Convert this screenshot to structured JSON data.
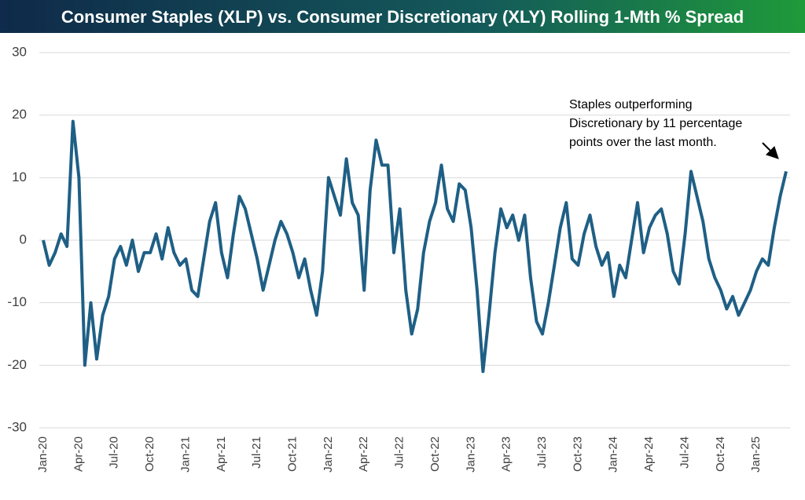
{
  "chart_data": {
    "type": "line",
    "title": "Consumer Staples (XLP) vs. Consumer Discretionary (XLY) Rolling 1-Mth % Spread",
    "annotation": [
      "Staples outperforming",
      "Discretionary by 11 percentage",
      "points over the last month."
    ],
    "categories": [
      "Jan-20",
      null,
      null,
      null,
      null,
      null,
      "Apr-20",
      null,
      null,
      null,
      null,
      null,
      "Jul-20",
      null,
      null,
      null,
      null,
      null,
      "Oct-20",
      null,
      null,
      null,
      null,
      null,
      "Jan-21",
      null,
      null,
      null,
      null,
      null,
      "Apr-21",
      null,
      null,
      null,
      null,
      null,
      "Jul-21",
      null,
      null,
      null,
      null,
      null,
      "Oct-21",
      null,
      null,
      null,
      null,
      null,
      "Jan-22",
      null,
      null,
      null,
      null,
      null,
      "Apr-22",
      null,
      null,
      null,
      null,
      null,
      "Jul-22",
      null,
      null,
      null,
      null,
      null,
      "Oct-22",
      null,
      null,
      null,
      null,
      null,
      "Jan-23",
      null,
      null,
      null,
      null,
      null,
      "Apr-23",
      null,
      null,
      null,
      null,
      null,
      "Jul-23",
      null,
      null,
      null,
      null,
      null,
      "Oct-23",
      null,
      null,
      null,
      null,
      null,
      "Jan-24",
      null,
      null,
      null,
      null,
      null,
      "Apr-24",
      null,
      null,
      null,
      null,
      null,
      "Jul-24",
      null,
      null,
      null,
      null,
      null,
      "Oct-24",
      null,
      null,
      null,
      null,
      null,
      "Jan-25",
      null,
      null,
      null,
      null,
      null
    ],
    "values": [
      0,
      -4,
      -2,
      1,
      -1,
      19,
      10,
      -20,
      -10,
      -19,
      -12,
      -9,
      -3,
      -1,
      -4,
      0,
      -5,
      -2,
      -2,
      1,
      -3,
      2,
      -2,
      -4,
      -3,
      -8,
      -9,
      -3,
      3,
      6,
      -2,
      -6,
      1,
      7,
      5,
      1,
      -3,
      -8,
      -4,
      0,
      3,
      1,
      -2,
      -6,
      -3,
      -8,
      -12,
      -5,
      10,
      7,
      4,
      13,
      6,
      4,
      -8,
      8,
      16,
      12,
      12,
      -2,
      5,
      -8,
      -15,
      -11,
      -2,
      3,
      6,
      12,
      5,
      3,
      9,
      8,
      2,
      -8,
      -21,
      -12,
      -2,
      5,
      2,
      4,
      0,
      4,
      -6,
      -13,
      -15,
      -10,
      -4,
      2,
      6,
      -3,
      -4,
      1,
      4,
      -1,
      -4,
      -2,
      -9,
      -4,
      -6,
      0,
      6,
      -2,
      2,
      4,
      5,
      1,
      -5,
      -7,
      1,
      11,
      7,
      3,
      -3,
      -6,
      -8,
      -11,
      -9,
      -12,
      -10,
      -8,
      -5,
      -3,
      -4,
      2,
      7,
      11
    ],
    "color": "#1f5f85",
    "ylim": [
      -30,
      30
    ],
    "yticks": [
      30,
      20,
      10,
      0,
      -10,
      -20,
      -30
    ],
    "grid": true
  }
}
